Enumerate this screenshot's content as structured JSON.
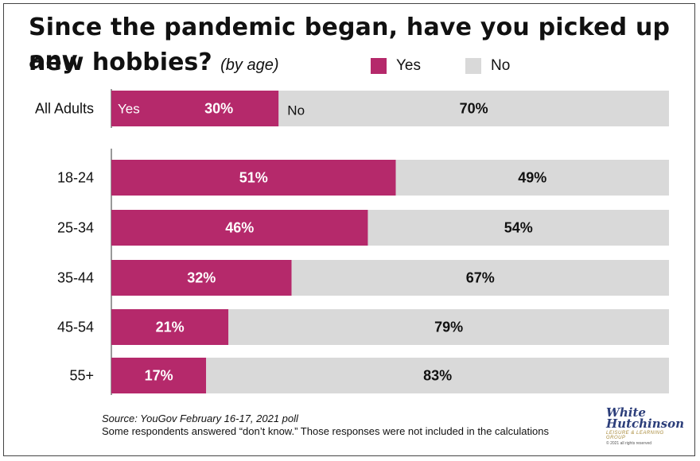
{
  "title": {
    "line1": "Since the pandemic began, have you picked up any",
    "line2": "new hobbies?",
    "subtitle": "(by age)"
  },
  "legend": [
    {
      "label": "Yes",
      "color": "#b5296b"
    },
    {
      "label": "No",
      "color": "#d9d9d9"
    }
  ],
  "inline_labels": {
    "yes": "Yes",
    "no": "No"
  },
  "chart_data": {
    "type": "bar",
    "orientation": "horizontal",
    "stacked": true,
    "categories": [
      "All Adults",
      "18-24",
      "25-34",
      "35-44",
      "45-54",
      "55+"
    ],
    "series": [
      {
        "name": "Yes",
        "values": [
          30,
          51,
          46,
          32,
          21,
          17
        ],
        "color": "#b5296b"
      },
      {
        "name": "No",
        "values": [
          70,
          49,
          54,
          67,
          79,
          83
        ],
        "color": "#d9d9d9"
      }
    ],
    "data_labels": {
      "Yes": [
        "30%",
        "51%",
        "46%",
        "32%",
        "21%",
        "17%"
      ],
      "No": [
        "70%",
        "49%",
        "54%",
        "67%",
        "79%",
        "83%"
      ]
    },
    "xlim": [
      0,
      100
    ],
    "legend_position": "top-right",
    "grid": false
  },
  "footer": {
    "source": "Source: YouGov February 16-17, 2021 poll",
    "note": "Some respondents answered “don’t know.”  Those responses were not included in the calculations"
  },
  "logo": {
    "line1": "White",
    "line2": "Hutchinson",
    "tagline": "LEISURE & LEARNING GROUP",
    "copyright": "© 2021 all rights reserved"
  }
}
